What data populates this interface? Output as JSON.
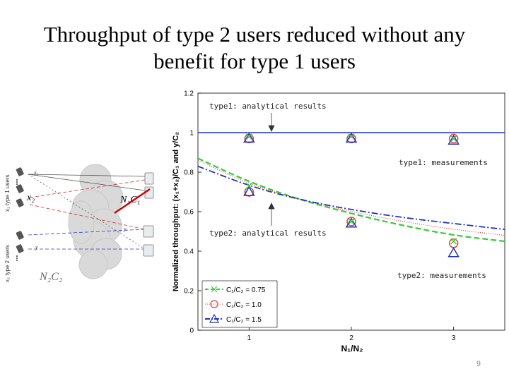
{
  "slide": {
    "title_line1": "Throughput of type 2 users reduced without any",
    "title_line2": "benefit for type 1 users",
    "page_number": "9"
  },
  "diagram": {
    "left_label_top": "x₁ type 1 users",
    "left_label_bottom": "x₂ type 2 users",
    "x1_label": "x₁",
    "x2_label": "x₂",
    "y_label": "y",
    "y_label2": "y",
    "n2c2_label": "N₂C₂",
    "n1c1_label": "N₁C₁",
    "x2_overlay": "x₂"
  },
  "chart_data": {
    "type": "line",
    "xlabel": "N₁/N₂",
    "ylabel": "Normalized throughput: (x₁+x₂)/C₁ and y/C₂",
    "xlim": [
      0.5,
      3.5
    ],
    "ylim": [
      0,
      1.2
    ],
    "xticks": [
      "1",
      "2",
      "3"
    ],
    "yticks": [
      "0",
      "0.2",
      "0.4",
      "0.6",
      "0.8",
      "1",
      "1.2"
    ],
    "annotations": [
      "type1: analytical results",
      "type1: measurements",
      "type2: analytical results",
      "type2: measurements"
    ],
    "legend": [
      {
        "name": "C₁/C₂ = 0.75",
        "color": "#33cc33",
        "marker": "x"
      },
      {
        "name": "C₁/C₂ = 1.0",
        "color": "#e04040",
        "marker": "circle"
      },
      {
        "name": "C₁/C₂ = 1.5",
        "color": "#2233bb",
        "marker": "triangle"
      }
    ],
    "series": [
      {
        "name": "type1 analytical",
        "color": "#2233cc",
        "x": [
          0.5,
          3.5
        ],
        "y": [
          1.0,
          1.0
        ]
      },
      {
        "name": "type2 analytical C1/C2 = 0.75",
        "color": "#33cc33",
        "x": [
          0.5,
          1,
          1.5,
          2,
          2.5,
          3,
          3.5
        ],
        "y": [
          0.87,
          0.75,
          0.66,
          0.59,
          0.53,
          0.48,
          0.45
        ]
      },
      {
        "name": "type2 analytical C1/C2 = 1.0",
        "color": "#e04040",
        "x": [
          0.5,
          1,
          1.5,
          2,
          2.5,
          3,
          3.5
        ],
        "y": [
          0.86,
          0.74,
          0.66,
          0.6,
          0.55,
          0.51,
          0.48
        ]
      },
      {
        "name": "type2 analytical C1/C2 = 1.5",
        "color": "#2233bb",
        "x": [
          0.5,
          1,
          1.5,
          2,
          2.5,
          3,
          3.5
        ],
        "y": [
          0.83,
          0.73,
          0.66,
          0.61,
          0.57,
          0.54,
          0.51
        ]
      }
    ],
    "measurements": [
      {
        "marker": "circle",
        "color": "#e04040",
        "x": [
          1,
          2,
          3
        ],
        "type1": [
          0.97,
          0.97,
          0.97
        ],
        "type2": [
          0.7,
          0.55,
          0.44
        ]
      },
      {
        "marker": "triangle",
        "color": "#2233bb",
        "x": [
          1,
          2,
          3
        ],
        "type1": [
          0.97,
          0.97,
          0.96
        ],
        "type2": [
          0.7,
          0.54,
          0.39
        ]
      },
      {
        "marker": "x",
        "color": "#33cc33",
        "x": [
          1,
          2,
          3
        ],
        "type1": [
          0.98,
          0.98,
          0.97
        ],
        "type2": [
          0.73,
          0.55,
          0.45
        ]
      }
    ]
  }
}
